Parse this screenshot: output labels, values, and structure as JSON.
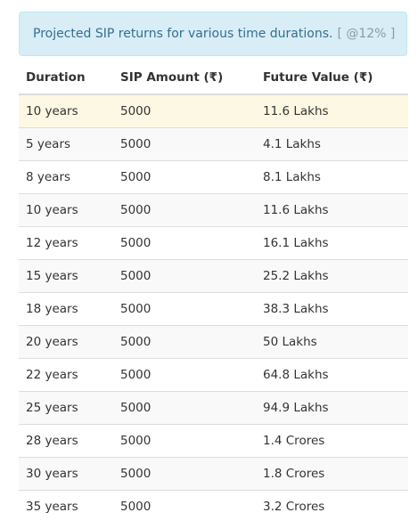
{
  "alert": {
    "text": "Projected SIP returns for various time durations.",
    "rate": "[ @12% ]"
  },
  "table": {
    "headers": [
      "Duration",
      "SIP Amount (₹)",
      "Future Value (₹)"
    ],
    "rows": [
      [
        "10 years",
        "5000",
        "11.6 Lakhs"
      ],
      [
        "5 years",
        "5000",
        "4.1 Lakhs"
      ],
      [
        "8 years",
        "5000",
        "8.1 Lakhs"
      ],
      [
        "10 years",
        "5000",
        "11.6 Lakhs"
      ],
      [
        "12 years",
        "5000",
        "16.1 Lakhs"
      ],
      [
        "15 years",
        "5000",
        "25.2 Lakhs"
      ],
      [
        "18 years",
        "5000",
        "38.3 Lakhs"
      ],
      [
        "20 years",
        "5000",
        "50 Lakhs"
      ],
      [
        "22 years",
        "5000",
        "64.8 Lakhs"
      ],
      [
        "25 years",
        "5000",
        "94.9 Lakhs"
      ],
      [
        "28 years",
        "5000",
        "1.4 Crores"
      ],
      [
        "30 years",
        "5000",
        "1.8 Crores"
      ],
      [
        "35 years",
        "5000",
        "3.2 Crores"
      ]
    ]
  },
  "colors": {
    "alert_bg": "#d9edf7",
    "alert_text": "#31708f",
    "highlight_row": "#fcf8e3"
  }
}
